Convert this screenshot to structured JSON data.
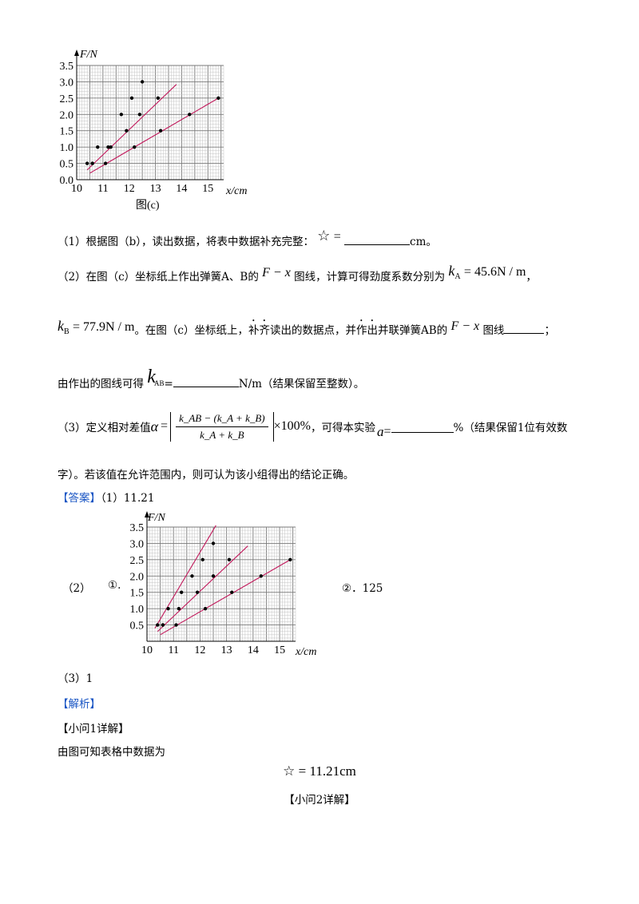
{
  "chart_top": {
    "caption": "图(c)",
    "y_label": "F/N",
    "x_label": "x/cm",
    "x_ticks": [
      "10",
      "11",
      "12",
      "13",
      "14",
      "15"
    ],
    "y_ticks": [
      "0.0",
      "0.5",
      "1.0",
      "1.5",
      "2.0",
      "2.5",
      "3.0",
      "3.5"
    ]
  },
  "chart_bottom": {
    "y_label": "F/N",
    "x_label": "x/cm",
    "x_ticks": [
      "10",
      "11",
      "12",
      "13",
      "14",
      "15"
    ],
    "y_ticks": [
      "0.5",
      "1.0",
      "1.5",
      "2.0",
      "2.5",
      "3.0",
      "3.5"
    ]
  },
  "chart_data": [
    {
      "type": "scatter",
      "xlim": [
        10,
        15.6
      ],
      "ylim": [
        0,
        3.5
      ],
      "grid": true,
      "series": [
        {
          "x": [
            10.4,
            10.6,
            10.8,
            11.3,
            11.7,
            12.1,
            12.5
          ],
          "y": [
            0.5,
            0.5,
            1.0,
            1.0,
            2.0,
            2.5,
            3.0
          ]
        },
        {
          "x": [
            10.6,
            11.2,
            11.9,
            12.4,
            13.1
          ],
          "y": [
            0.5,
            1.0,
            1.5,
            2.0,
            2.5
          ]
        },
        {
          "x": [
            11.1,
            12.2,
            13.2,
            14.3,
            15.4
          ],
          "y": [
            0.5,
            1.0,
            1.5,
            2.0,
            2.5
          ]
        }
      ],
      "lines": [
        {
          "x": [
            10.4,
            13.8
          ],
          "y": [
            0.3,
            2.92
          ]
        },
        {
          "x": [
            10.5,
            15.4
          ],
          "y": [
            0.2,
            2.5
          ]
        }
      ]
    },
    {
      "type": "scatter",
      "xlim": [
        10,
        15.6
      ],
      "ylim": [
        0,
        3.5
      ],
      "grid": true,
      "series": [
        {
          "x": [
            10.4,
            10.6,
            10.8,
            11.3,
            11.7,
            12.1,
            12.5
          ],
          "y": [
            0.5,
            0.5,
            1.0,
            1.5,
            2.0,
            2.5,
            3.0
          ]
        },
        {
          "x": [
            10.6,
            11.2,
            11.9,
            12.5,
            13.1
          ],
          "y": [
            0.5,
            1.0,
            1.5,
            2.0,
            2.5
          ]
        },
        {
          "x": [
            11.1,
            12.2,
            13.2,
            14.3,
            15.4
          ],
          "y": [
            0.5,
            1.0,
            1.5,
            2.0,
            2.5
          ]
        }
      ],
      "lines": [
        {
          "x": [
            10.3,
            12.6
          ],
          "y": [
            0.4,
            3.55
          ]
        },
        {
          "x": [
            10.4,
            13.8
          ],
          "y": [
            0.3,
            2.92
          ]
        },
        {
          "x": [
            10.5,
            15.4
          ],
          "y": [
            0.2,
            2.5
          ]
        }
      ]
    }
  ],
  "q1": {
    "label": "（1）根据图（b），读出数据，将表中数据补充完整：",
    "star": "☆",
    "eq": "=",
    "unit": "cm。"
  },
  "q2": {
    "label": "（2）在图（c）坐标纸上作出弹簧A、B的",
    "fx": "F − x",
    "mid": "图线，计算可得劲度系数分别为",
    "kA_sym": "k",
    "kA_sub": "A",
    "kA_val": "= 45.6N / m",
    "comma": "，",
    "kB_sym": "k",
    "kB_sub": "B",
    "kB_val": "= 77.9N / m",
    "l2_a": "。在图（c）坐标纸上，",
    "l2_b": "补齐",
    "l2_c": "读出的数据点，并",
    "l2_d": "作出",
    "l2_e": "并联弹簧AB的",
    "l2_f": "图线",
    "l2_end": "；",
    "l3_a": "由作出的图线可得",
    "kAB_sym": "k",
    "kAB_sub": "AB",
    "l3_eq": "=",
    "l3_unit": "N/m（结果保留至整数）。"
  },
  "q3": {
    "label": "（3）定义相对差值",
    "alpha": "α",
    "eq": "=",
    "num": "k_AB − (k_A + k_B)",
    "den": "k_A + k_B",
    "times": "×100%",
    "mid": "，可得本实验",
    "a_sym": "a",
    "a_eq": "=",
    "tail": "%（结果保留1位有效数",
    "l2": "字）。若该值在允许范围内，则可认为该小组得出的结论正确。"
  },
  "answer": {
    "tag": "【答案】",
    "a1": "（1）11.21",
    "a2_label": "（2）",
    "a2_sub1": "①.",
    "a2_sub2": "②．125",
    "a3": "（3）1"
  },
  "analysis": {
    "tag": "【解析】",
    "sub1": "【小问1详解】",
    "text1": "由图可知表格中数据为",
    "formula": "☆ = 11.21cm",
    "sub2": "【小问2详解】"
  }
}
